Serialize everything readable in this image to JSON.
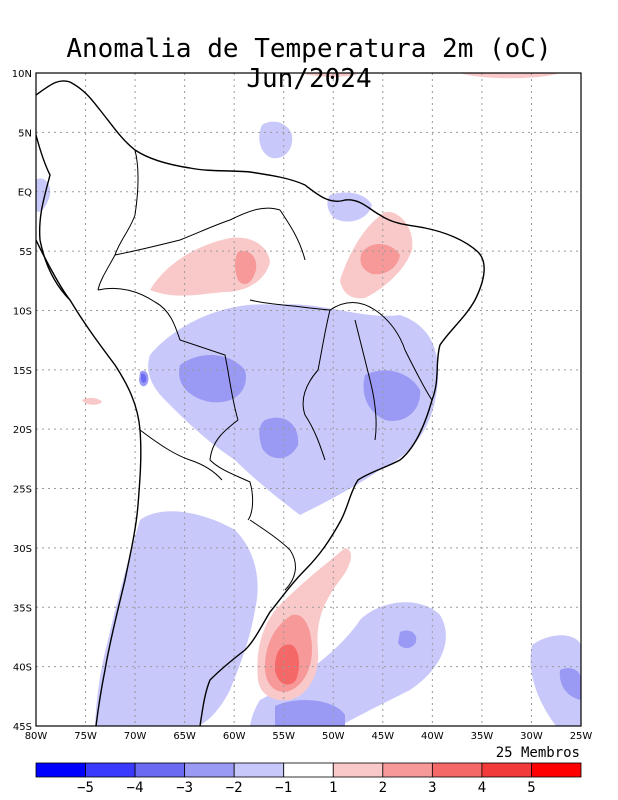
{
  "title": "Anomalia de Temperatura 2m (oC) Jun/2024",
  "members_label": "25 Membros",
  "lon_ticks": [
    "80W",
    "75W",
    "70W",
    "65W",
    "60W",
    "55W",
    "50W",
    "45W",
    "40W",
    "35W",
    "30W",
    "25W"
  ],
  "lat_ticks": [
    "10N",
    "5N",
    "EQ",
    "5S",
    "10S",
    "15S",
    "20S",
    "25S",
    "30S",
    "35S",
    "40S",
    "45S"
  ],
  "colorbar": {
    "colors": [
      "#0000ff",
      "#3a3aff",
      "#6a6af2",
      "#9a9af5",
      "#c8c8fa",
      "#ffffff",
      "#f9c9c9",
      "#f79999",
      "#f46868",
      "#f23a3a",
      "#ff0000"
    ],
    "labels": [
      "−5",
      "−4",
      "−3",
      "−2",
      "−1",
      "1",
      "2",
      "3",
      "4",
      "5"
    ]
  },
  "colors": {
    "neg_light": "#c8c8fa",
    "neg_mid": "#9a9af5",
    "neg_strong": "#6a6af2",
    "pos_light": "#f9c9c9",
    "pos_mid": "#f79999",
    "pos_strong": "#f46868"
  }
}
